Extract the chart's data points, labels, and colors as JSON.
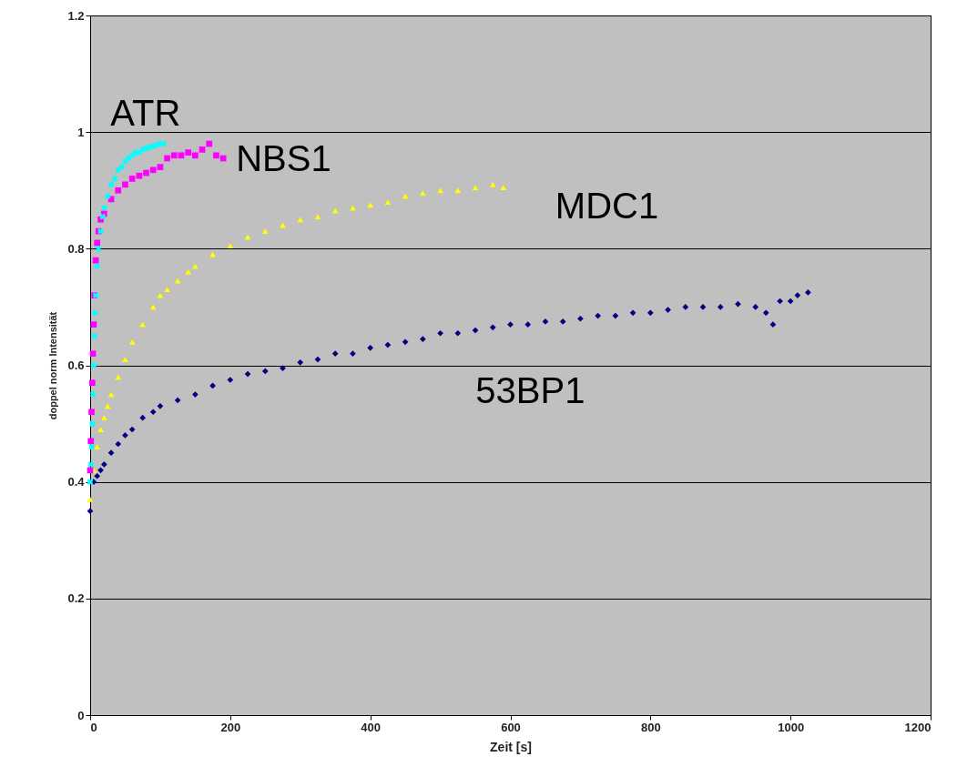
{
  "chart_data": {
    "type": "scatter",
    "xlabel": "Zeit [s]",
    "ylabel": "doppel norm Intensität",
    "xlim": [
      0,
      1200
    ],
    "xticks": [
      0,
      200,
      400,
      600,
      800,
      1000,
      1200
    ],
    "ylim": [
      0,
      1.2
    ],
    "yticks": [
      0,
      0.2,
      0.4,
      0.6,
      0.8,
      1,
      1.2
    ],
    "grid": "y",
    "series": [
      {
        "name": "ATR",
        "color": "#00ffff",
        "marker": "cross",
        "x": [
          0,
          1,
          2,
          3,
          4,
          5,
          6,
          7,
          8,
          10,
          12,
          15,
          18,
          20,
          25,
          30,
          35,
          40,
          45,
          50,
          55,
          60,
          65,
          70,
          75,
          80,
          85,
          90,
          95,
          100,
          105
        ],
        "values": [
          0.4,
          0.43,
          0.46,
          0.5,
          0.55,
          0.6,
          0.65,
          0.69,
          0.72,
          0.77,
          0.8,
          0.83,
          0.855,
          0.87,
          0.89,
          0.91,
          0.92,
          0.935,
          0.94,
          0.95,
          0.955,
          0.96,
          0.965,
          0.965,
          0.97,
          0.972,
          0.975,
          0.975,
          0.978,
          0.98,
          0.98
        ]
      },
      {
        "name": "NBS1",
        "color": "#ff00ff",
        "marker": "square",
        "x": [
          0,
          1,
          2,
          3,
          4,
          5,
          6,
          8,
          10,
          12,
          15,
          20,
          30,
          40,
          50,
          60,
          70,
          80,
          90,
          100,
          110,
          120,
          130,
          140,
          150,
          160,
          170,
          180,
          190
        ],
        "values": [
          0.42,
          0.47,
          0.52,
          0.57,
          0.62,
          0.67,
          0.72,
          0.78,
          0.81,
          0.83,
          0.85,
          0.86,
          0.885,
          0.9,
          0.91,
          0.92,
          0.925,
          0.93,
          0.935,
          0.94,
          0.955,
          0.96,
          0.96,
          0.965,
          0.96,
          0.97,
          0.98,
          0.96,
          0.955
        ]
      },
      {
        "name": "MDC1",
        "color": "#ffff00",
        "marker": "triangle",
        "x": [
          0,
          5,
          10,
          15,
          20,
          25,
          30,
          40,
          50,
          60,
          75,
          90,
          100,
          110,
          125,
          140,
          150,
          175,
          200,
          225,
          250,
          275,
          300,
          325,
          350,
          375,
          400,
          425,
          450,
          475,
          500,
          525,
          550,
          575,
          590
        ],
        "values": [
          0.37,
          0.42,
          0.46,
          0.49,
          0.51,
          0.53,
          0.55,
          0.58,
          0.61,
          0.64,
          0.67,
          0.7,
          0.72,
          0.73,
          0.745,
          0.76,
          0.77,
          0.79,
          0.805,
          0.82,
          0.83,
          0.84,
          0.85,
          0.855,
          0.865,
          0.87,
          0.875,
          0.88,
          0.89,
          0.895,
          0.9,
          0.9,
          0.905,
          0.91,
          0.905
        ]
      },
      {
        "name": "53BP1",
        "color": "#000080",
        "marker": "diamond",
        "x": [
          0,
          5,
          10,
          15,
          20,
          30,
          40,
          50,
          60,
          75,
          90,
          100,
          125,
          150,
          175,
          200,
          225,
          250,
          275,
          300,
          325,
          350,
          375,
          400,
          425,
          450,
          475,
          500,
          525,
          550,
          575,
          600,
          625,
          650,
          675,
          700,
          725,
          750,
          775,
          800,
          825,
          850,
          875,
          900,
          925,
          950,
          965,
          975,
          985,
          1000,
          1010,
          1025
        ],
        "values": [
          0.35,
          0.4,
          0.41,
          0.42,
          0.43,
          0.45,
          0.465,
          0.48,
          0.49,
          0.51,
          0.52,
          0.53,
          0.54,
          0.55,
          0.565,
          0.575,
          0.585,
          0.59,
          0.595,
          0.605,
          0.61,
          0.62,
          0.62,
          0.63,
          0.635,
          0.64,
          0.645,
          0.655,
          0.655,
          0.66,
          0.665,
          0.67,
          0.67,
          0.675,
          0.675,
          0.68,
          0.685,
          0.685,
          0.69,
          0.69,
          0.695,
          0.7,
          0.7,
          0.7,
          0.705,
          0.7,
          0.69,
          0.67,
          0.71,
          0.71,
          0.72,
          0.725
        ]
      }
    ]
  }
}
